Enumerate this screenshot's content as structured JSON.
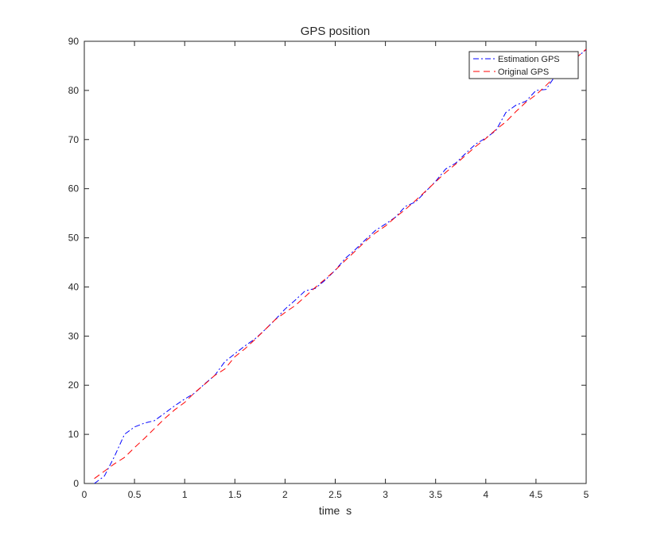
{
  "chart_data": {
    "type": "line",
    "title": "GPS position",
    "xlabel": "time  s",
    "ylabel": "",
    "xlim": [
      0,
      5
    ],
    "ylim": [
      0,
      90
    ],
    "xticks": [
      0,
      0.5,
      1,
      1.5,
      2,
      2.5,
      3,
      3.5,
      4,
      4.5,
      5
    ],
    "xtick_labels": [
      "0",
      "0.5",
      "1",
      "1.5",
      "2",
      "2.5",
      "3",
      "3.5",
      "4",
      "4.5",
      "5"
    ],
    "yticks": [
      0,
      10,
      20,
      30,
      40,
      50,
      60,
      70,
      80,
      90
    ],
    "ytick_labels": [
      "0",
      "10",
      "20",
      "30",
      "40",
      "50",
      "60",
      "70",
      "80",
      "90"
    ],
    "grid": false,
    "legend_position": "top-right",
    "series": [
      {
        "name": "Estimation GPS",
        "color": "#0000ff",
        "line_style": "dash-dot",
        "x": [
          0.1,
          0.2,
          0.3,
          0.4,
          0.5,
          0.6,
          0.7,
          0.8,
          0.9,
          1.0,
          1.1,
          1.2,
          1.3,
          1.4,
          1.5,
          1.6,
          1.7,
          1.8,
          1.9,
          2.0,
          2.1,
          2.2,
          2.3,
          2.4,
          2.5,
          2.6,
          2.7,
          2.8,
          2.9,
          3.0,
          3.1,
          3.2,
          3.3,
          3.4,
          3.5,
          3.6,
          3.7,
          3.8,
          3.9,
          4.0,
          4.1,
          4.2,
          4.3,
          4.4,
          4.5,
          4.6,
          4.7,
          4.8,
          4.9,
          5.0
        ],
        "y": [
          0,
          1.5,
          5.5,
          10,
          11.5,
          12.3,
          12.8,
          14.3,
          15.8,
          17.2,
          18.4,
          20.3,
          22.0,
          24.8,
          26.4,
          28.0,
          29.4,
          31.3,
          33.3,
          35.5,
          37.3,
          39.2,
          39.7,
          41.4,
          43.4,
          45.8,
          47.6,
          49.6,
          51.5,
          52.8,
          54.2,
          56.4,
          57.3,
          59.4,
          61.5,
          64.0,
          65.2,
          67.2,
          69.1,
          70.3,
          71.8,
          75.5,
          77.0,
          77.8,
          80.0,
          80.2,
          83.2,
          85.0,
          86.6,
          88.3
        ]
      },
      {
        "name": "Original GPS",
        "color": "#ff0000",
        "line_style": "dashed",
        "x": [
          0.1,
          0.2,
          0.3,
          0.4,
          0.5,
          0.6,
          0.7,
          0.8,
          0.9,
          1.0,
          1.1,
          1.2,
          1.3,
          1.4,
          1.5,
          1.6,
          1.7,
          1.8,
          1.9,
          2.0,
          2.1,
          2.2,
          2.3,
          2.4,
          2.5,
          2.6,
          2.7,
          2.8,
          2.9,
          3.0,
          3.1,
          3.2,
          3.3,
          3.4,
          3.5,
          3.6,
          3.7,
          3.8,
          3.9,
          4.0,
          4.1,
          4.2,
          4.3,
          4.4,
          4.5,
          4.6,
          4.7,
          4.8,
          4.9,
          5.0
        ],
        "y": [
          1.0,
          2.5,
          4.0,
          5.3,
          7.3,
          9.2,
          11.2,
          13.2,
          15.0,
          16.5,
          18.5,
          20.2,
          22.0,
          23.3,
          25.8,
          27.4,
          29.3,
          31.3,
          33.3,
          34.8,
          36.2,
          38.0,
          39.9,
          41.6,
          43.4,
          45.4,
          47.3,
          49.3,
          51.0,
          52.4,
          54.2,
          55.8,
          57.6,
          59.5,
          61.4,
          63.3,
          65.0,
          66.8,
          68.6,
          70.2,
          72.0,
          73.6,
          75.7,
          77.6,
          79.1,
          81.0,
          83.0,
          84.8,
          86.6,
          88.4
        ]
      }
    ]
  }
}
